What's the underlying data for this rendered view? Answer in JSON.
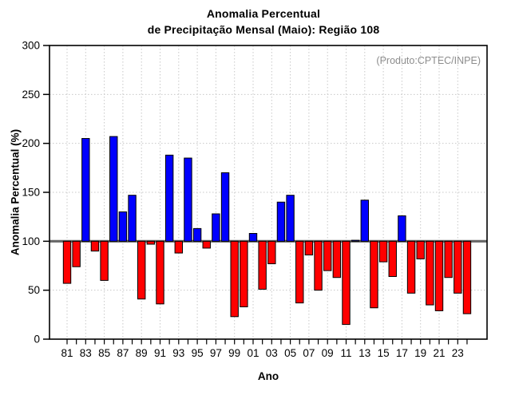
{
  "title": {
    "line1": "Anomalia Percentual",
    "line2": "de Precipitação Mensal (Maio): Região 108"
  },
  "annotation": {
    "text": "(Produto:CPTEC/INPE)",
    "color": "#8c8c8c"
  },
  "chart_data": {
    "type": "bar",
    "title": "Anomalia Percentual de Precipitação Mensal (Maio): Região 108",
    "xlabel": "Ano",
    "ylabel": "Anomalia Percentual (%)",
    "ylim": [
      0,
      300
    ],
    "yticks": [
      0,
      50,
      100,
      150,
      200,
      250,
      300
    ],
    "baseline": 100,
    "grid": "dotted",
    "legend_position": "none",
    "x_tick_labels": [
      "81",
      "83",
      "85",
      "87",
      "89",
      "91",
      "93",
      "95",
      "97",
      "99",
      "01",
      "03",
      "05",
      "07",
      "09",
      "11",
      "13",
      "15",
      "17",
      "19",
      "21",
      "23"
    ],
    "years": [
      1981,
      1982,
      1983,
      1984,
      1985,
      1986,
      1987,
      1988,
      1989,
      1990,
      1991,
      1992,
      1993,
      1994,
      1995,
      1996,
      1997,
      1998,
      1999,
      2000,
      2001,
      2002,
      2003,
      2004,
      2005,
      2006,
      2007,
      2008,
      2009,
      2010,
      2011,
      2012,
      2013,
      2014,
      2015,
      2016,
      2017,
      2018,
      2019,
      2020,
      2021,
      2022,
      2023,
      2024
    ],
    "values": [
      57,
      74,
      205,
      90,
      60,
      207,
      130,
      147,
      41,
      97,
      36,
      188,
      88,
      185,
      113,
      93,
      128,
      170,
      23,
      33,
      108,
      51,
      77,
      140,
      147,
      37,
      86,
      50,
      70,
      63,
      15,
      101,
      142,
      32,
      79,
      64,
      126,
      47,
      82,
      35,
      29,
      63,
      47,
      26
    ],
    "colors": {
      "above_baseline": "#0000ff",
      "below_baseline": "#ff0000",
      "bar_outline": "#000000",
      "baseline_line": "#666666",
      "gridline": "#c8c8c8"
    }
  }
}
